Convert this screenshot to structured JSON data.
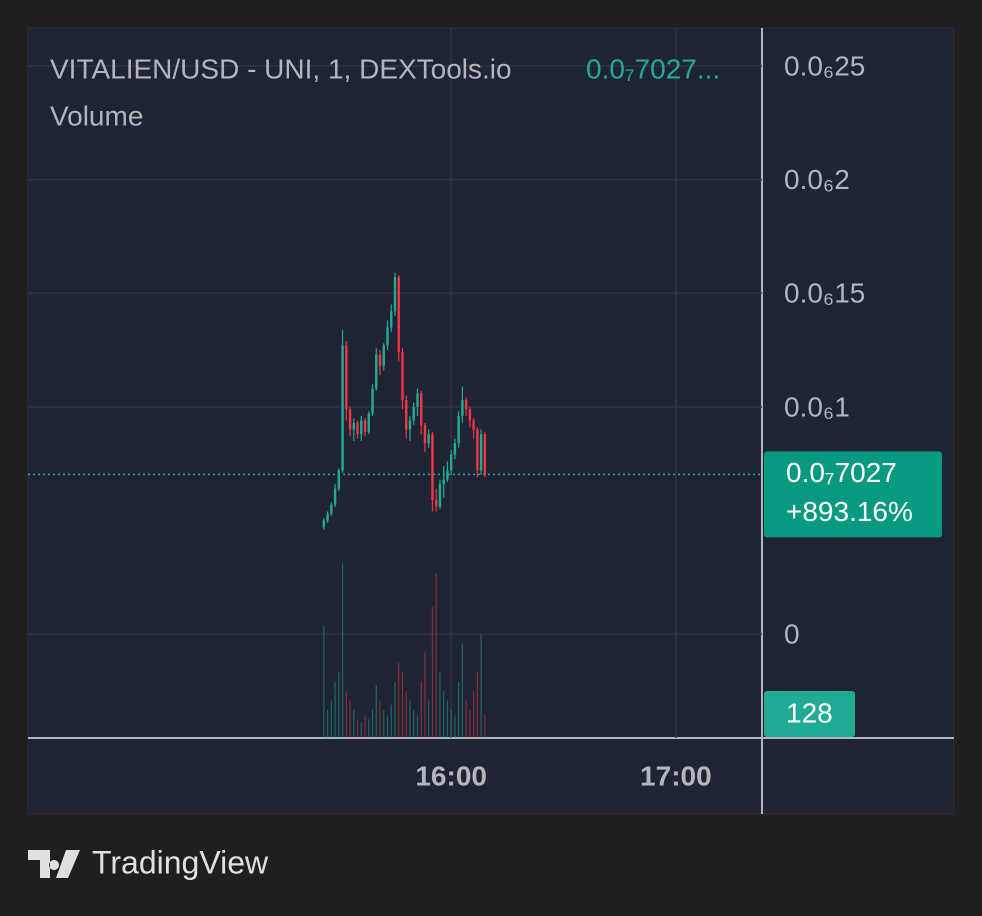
{
  "chart_data": {
    "type": "candlestick",
    "title": "VITALIEN/USD - UNI, 1, DEXTools.io",
    "header_price": "0.0₇7027...",
    "volume_label": "Volume",
    "x": [
      "15:26",
      "15:27",
      "15:28",
      "15:29",
      "15:30",
      "15:31",
      "15:32",
      "15:33",
      "15:34",
      "15:35",
      "15:36",
      "15:37",
      "15:38",
      "15:39",
      "15:40",
      "15:41",
      "15:42",
      "15:43",
      "15:44",
      "15:45",
      "15:46",
      "15:47",
      "15:48",
      "15:49",
      "15:50",
      "15:51",
      "15:52",
      "15:53",
      "15:54",
      "15:55",
      "15:56",
      "15:57",
      "15:58",
      "15:59",
      "16:00",
      "16:01",
      "16:02",
      "16:03",
      "16:04",
      "16:05",
      "16:06",
      "16:07",
      "16:08",
      "16:09"
    ],
    "open": [
      4.7e-08,
      5e-08,
      5.3e-08,
      5.7e-08,
      6.4e-08,
      7.2e-08,
      1.27e-07,
      9.9e-08,
      9e-08,
      9.3e-08,
      8.8e-08,
      9.4e-08,
      8.9e-08,
      9.7e-08,
      1.08e-07,
      1.23e-07,
      1.18e-07,
      1.27e-07,
      1.35e-07,
      1.42e-07,
      1.57e-07,
      1.24e-07,
      1.03e-07,
      9e-08,
      9.4e-08,
      1e-07,
      1.06e-07,
      9.2e-08,
      8.4e-08,
      8.8e-08,
      5.9e-08,
      5.6e-08,
      6.6e-08,
      6.8e-08,
      7.2e-08,
      7.9e-08,
      8.4e-08,
      9.6e-08,
      1.03e-07,
      9.9e-08,
      9.4e-08,
      9e-08,
      7.2e-08,
      8.8e-08
    ],
    "high": [
      5.1e-08,
      5.4e-08,
      5.8e-08,
      6.6e-08,
      7.3e-08,
      1.34e-07,
      1.29e-07,
      1e-07,
      9.5e-08,
      9.4e-08,
      9.6e-08,
      9.5e-08,
      9.8e-08,
      1.1e-07,
      1.26e-07,
      1.25e-07,
      1.28e-07,
      1.38e-07,
      1.45e-07,
      1.59e-07,
      1.58e-07,
      1.26e-07,
      1.05e-07,
      9.6e-08,
      1.02e-07,
      1.08e-07,
      1.07e-07,
      9.3e-08,
      9e-08,
      8.9e-08,
      6.4e-08,
      6.8e-08,
      7.4e-08,
      7.6e-08,
      8.1e-08,
      8.6e-08,
      9.8e-08,
      1.09e-07,
      1.04e-07,
      1e-07,
      9.5e-08,
      9.1e-08,
      9e-08,
      8.9e-08
    ],
    "low": [
      4.6e-08,
      4.9e-08,
      5.2e-08,
      5.6e-08,
      6.3e-08,
      7.1e-08,
      9.4e-08,
      8.7e-08,
      8.5e-08,
      8.6e-08,
      8.5e-08,
      8.7e-08,
      8.8e-08,
      9.6e-08,
      1.07e-07,
      1.14e-07,
      1.16e-07,
      1.25e-07,
      1.33e-07,
      1.4e-07,
      1.2e-07,
      9.9e-08,
      8.6e-08,
      8.5e-08,
      9.2e-08,
      9.6e-08,
      8.8e-08,
      8e-08,
      8.2e-08,
      5.4e-08,
      5.4e-08,
      5.5e-08,
      6e-08,
      6.7e-08,
      7e-08,
      7.7e-08,
      8.2e-08,
      9.3e-08,
      9.6e-08,
      9.1e-08,
      8.6e-08,
      6.9e-08,
      7e-08,
      6.9e-08
    ],
    "close": [
      5e-08,
      5.3e-08,
      5.7e-08,
      6.4e-08,
      7.2e-08,
      1.27e-07,
      9.9e-08,
      9e-08,
      9.3e-08,
      8.8e-08,
      9.4e-08,
      8.9e-08,
      9.7e-08,
      1.08e-07,
      1.23e-07,
      1.18e-07,
      1.27e-07,
      1.35e-07,
      1.42e-07,
      1.57e-07,
      1.24e-07,
      1.03e-07,
      9e-08,
      9.4e-08,
      1e-07,
      1.06e-07,
      9.2e-08,
      8.4e-08,
      8.8e-08,
      5.9e-08,
      5.6e-08,
      6.6e-08,
      6.8e-08,
      7.2e-08,
      7.9e-08,
      8.4e-08,
      9.6e-08,
      1.03e-07,
      9.9e-08,
      9.4e-08,
      9e-08,
      7.2e-08,
      8.8e-08,
      7.027e-08
    ],
    "volume": [
      600,
      150,
      200,
      300,
      350,
      930,
      250,
      200,
      150,
      100,
      80,
      120,
      100,
      150,
      280,
      200,
      150,
      120,
      180,
      300,
      400,
      350,
      250,
      200,
      150,
      120,
      300,
      460,
      200,
      700,
      880,
      350,
      250,
      200,
      150,
      120,
      300,
      500,
      200,
      150,
      250,
      350,
      550,
      128
    ],
    "up_color": "#22ab94",
    "down_color": "#f23645",
    "ylim": [
      -4.57e-08,
      2.667e-07
    ],
    "yticks": [
      0,
      {
        "value": 1e-07,
        "label": "0.0₆1"
      },
      {
        "value": 1.5e-07,
        "label": "0.0₆15"
      },
      {
        "value": 2e-07,
        "label": "0.0₆2"
      },
      {
        "value": 2.5e-07,
        "label": "0.0₆25"
      }
    ],
    "volume_ylim": [
      0,
      3787
    ],
    "xlim": [
      "14:07",
      "17:23"
    ],
    "xticks": [
      "16:00",
      "17:00"
    ],
    "grid": true,
    "last_price": {
      "value": 7.027e-08,
      "label": "0.0₇7027"
    },
    "change": "+893.16%"
  },
  "brand": "TradingView"
}
